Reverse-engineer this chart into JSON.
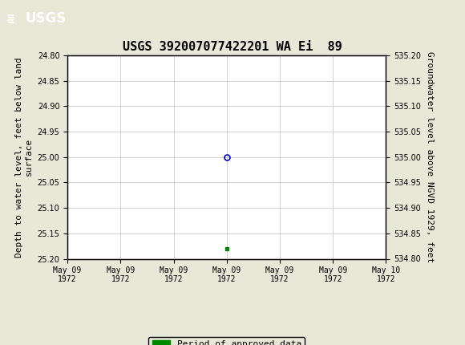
{
  "title": "USGS 392007077422201 WA Ei  89",
  "ylabel_left": "Depth to water level, feet below land\nsurface",
  "ylabel_right": "Groundwater level above NGVD 1929, feet",
  "xlim_left": 0,
  "xlim_right": 6,
  "ylim_left_bottom": 25.2,
  "ylim_left_top": 24.8,
  "ylim_right_bottom": 534.8,
  "ylim_right_top": 535.2,
  "yticks_left": [
    24.8,
    24.85,
    24.9,
    24.95,
    25.0,
    25.05,
    25.1,
    25.15,
    25.2
  ],
  "yticks_right": [
    535.2,
    535.15,
    535.1,
    535.05,
    535.0,
    534.95,
    534.9,
    534.85,
    534.8
  ],
  "xtick_labels": [
    "May 09\n1972",
    "May 09\n1972",
    "May 09\n1972",
    "May 09\n1972",
    "May 09\n1972",
    "May 09\n1972",
    "May 10\n1972"
  ],
  "xtick_positions": [
    0,
    1,
    2,
    3,
    4,
    5,
    6
  ],
  "data_point_x": 3.0,
  "data_point_y": 25.0,
  "data_point_color": "#0000cc",
  "green_marker_x": 3.0,
  "green_marker_y": 25.18,
  "green_marker_color": "#008800",
  "header_color": "#1a6b3c",
  "background_color": "#e8e8d8",
  "plot_bg_color": "#ffffff",
  "grid_color": "#c0c0c0",
  "legend_label": "Period of approved data",
  "legend_color": "#008800",
  "title_fontsize": 11,
  "axis_fontsize": 8,
  "tick_fontsize": 7,
  "header_text": "USGS",
  "header_symbol": "≣"
}
